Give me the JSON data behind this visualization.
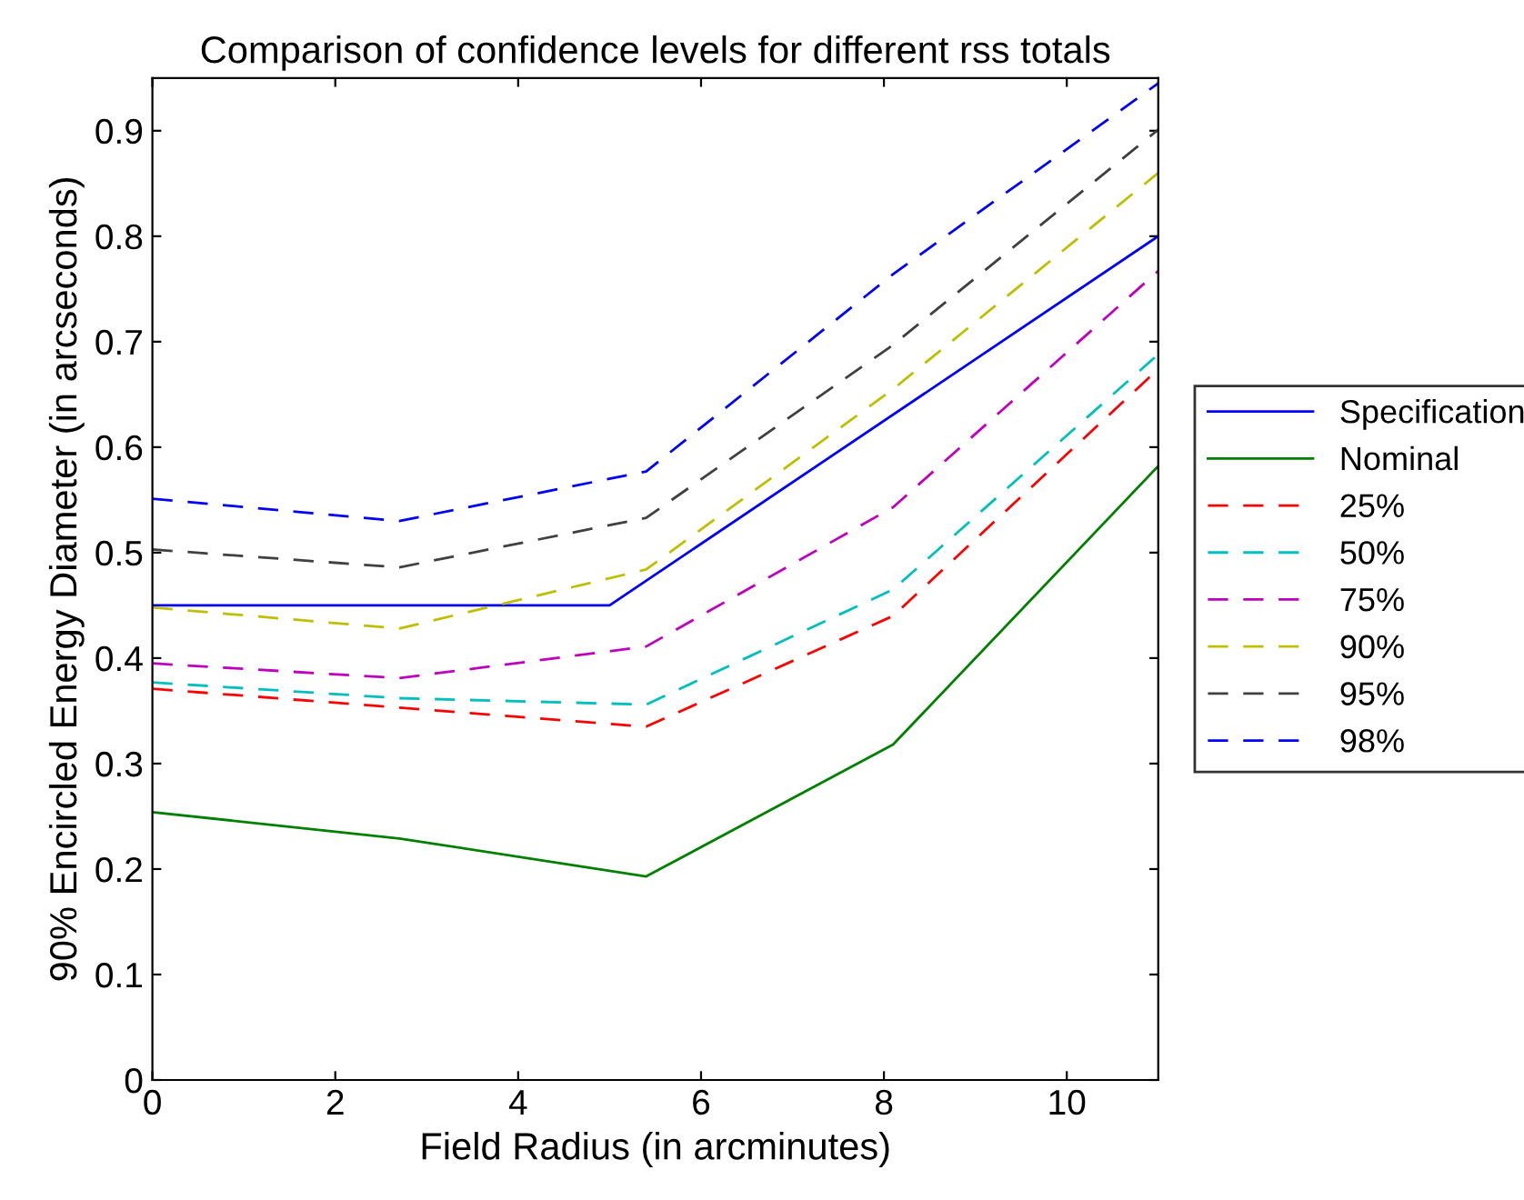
{
  "chart_data": {
    "type": "line",
    "title": "Comparison of confidence levels for different rss totals",
    "xlabel": "Field Radius (in arcminutes)",
    "ylabel": "90% Encircled Energy Diameter (in arcseconds)",
    "xlim": [
      0,
      11
    ],
    "xticks": [
      0,
      2,
      4,
      6,
      8,
      10
    ],
    "ylim": [
      0,
      0.95
    ],
    "yticks": [
      0,
      0.1,
      0.2,
      0.3,
      0.4,
      0.5,
      0.6,
      0.7,
      0.8,
      0.9
    ],
    "grid": false,
    "legend": "right",
    "marker": "none",
    "series": [
      {
        "name": "Specification",
        "color": "#0000ff",
        "line_style": "solid",
        "x": [
          0,
          5.0,
          11
        ],
        "values": [
          0.45,
          0.45,
          0.8
        ]
      },
      {
        "name": "Nominal",
        "color": "#008000",
        "line_style": "solid",
        "x": [
          0,
          2.7,
          5.4,
          8.1,
          11
        ],
        "values": [
          0.254,
          0.229,
          0.193,
          0.318,
          0.582
        ]
      },
      {
        "name": "25%",
        "color": "#ff0000",
        "line_style": "dashed",
        "x": [
          0,
          2.7,
          5.4,
          8.1,
          11
        ],
        "values": [
          0.371,
          0.353,
          0.335,
          0.44,
          0.674
        ]
      },
      {
        "name": "50%",
        "color": "#00bfbf",
        "line_style": "dashed",
        "x": [
          0,
          2.7,
          5.4,
          8.1,
          11
        ],
        "values": [
          0.377,
          0.362,
          0.356,
          0.465,
          0.688
        ]
      },
      {
        "name": "75%",
        "color": "#bf00bf",
        "line_style": "dashed",
        "x": [
          0,
          2.7,
          5.4,
          8.1,
          11
        ],
        "values": [
          0.395,
          0.381,
          0.411,
          0.543,
          0.767
        ]
      },
      {
        "name": "90%",
        "color": "#bfbf00",
        "line_style": "dashed",
        "x": [
          0,
          2.7,
          5.4,
          8.1,
          11
        ],
        "values": [
          0.448,
          0.428,
          0.484,
          0.655,
          0.86
        ]
      },
      {
        "name": "95%",
        "color": "#404040",
        "line_style": "dashed",
        "x": [
          0,
          2.7,
          5.4,
          8.1,
          11
        ],
        "values": [
          0.503,
          0.486,
          0.533,
          0.697,
          0.901
        ]
      },
      {
        "name": "98%",
        "color": "#0000ff",
        "line_style": "dashed",
        "x": [
          0,
          2.7,
          5.4,
          8.1,
          11
        ],
        "values": [
          0.551,
          0.53,
          0.577,
          0.764,
          0.945
        ]
      }
    ]
  }
}
